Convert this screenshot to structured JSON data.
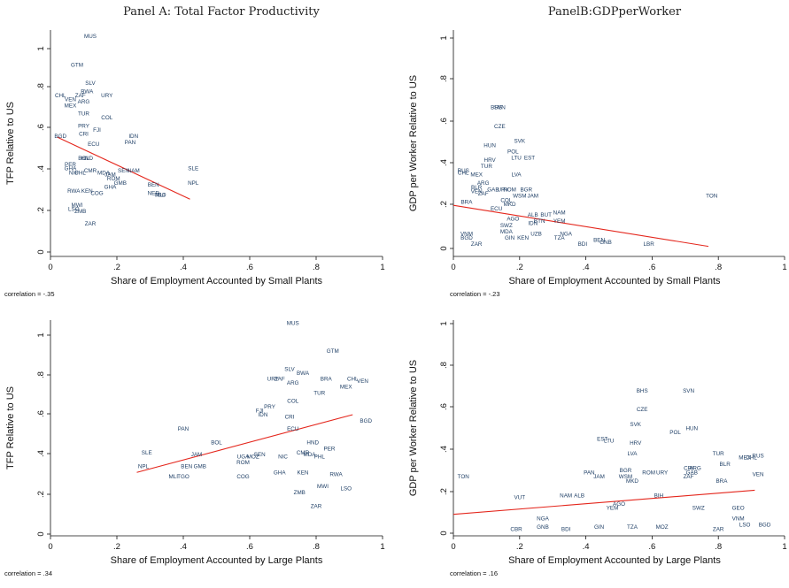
{
  "figure": {
    "titles": [
      "Panel A: Total Factor Productivity",
      "PanelB:GDPperWorker"
    ]
  },
  "colors": {
    "points": "#1f3f66",
    "fit": "#e4261c",
    "axis": "#111111"
  },
  "chart_data": [
    {
      "type": "scatter",
      "title": "Panel A: Total Factor Productivity",
      "xlabel": "Share of Employment Accounted by Small Plants",
      "ylabel": "TFP Relative to US",
      "xlim": [
        0,
        1
      ],
      "ylim": [
        0,
        1.05
      ],
      "xticks": [
        "0",
        ".2",
        ".4",
        ".6",
        ".8",
        "1"
      ],
      "yticks": [
        "0",
        ".2",
        ".4",
        ".6",
        ".8",
        "1"
      ],
      "note": "correlation = -.35",
      "fit_line": [
        [
          0.02,
          0.565
        ],
        [
          0.42,
          0.26
        ]
      ],
      "points": [
        {
          "label": "MUS",
          "x": 0.12,
          "y": 1.06
        },
        {
          "label": "GTM",
          "x": 0.08,
          "y": 0.92
        },
        {
          "label": "SLV",
          "x": 0.12,
          "y": 0.83
        },
        {
          "label": "BWA",
          "x": 0.11,
          "y": 0.79
        },
        {
          "label": "URY",
          "x": 0.17,
          "y": 0.77
        },
        {
          "label": "ZAF",
          "x": 0.09,
          "y": 0.77
        },
        {
          "label": "CHL",
          "x": 0.03,
          "y": 0.77
        },
        {
          "label": "VEN",
          "x": 0.06,
          "y": 0.75
        },
        {
          "label": "ARG",
          "x": 0.1,
          "y": 0.74
        },
        {
          "label": "MEX",
          "x": 0.06,
          "y": 0.72
        },
        {
          "label": "TUR",
          "x": 0.1,
          "y": 0.68
        },
        {
          "label": "COL",
          "x": 0.17,
          "y": 0.66
        },
        {
          "label": "PRY",
          "x": 0.1,
          "y": 0.62
        },
        {
          "label": "FJI",
          "x": 0.14,
          "y": 0.6
        },
        {
          "label": "CRI",
          "x": 0.1,
          "y": 0.58
        },
        {
          "label": "IDN",
          "x": 0.25,
          "y": 0.57
        },
        {
          "label": "BGD",
          "x": 0.03,
          "y": 0.57
        },
        {
          "label": "ECU",
          "x": 0.13,
          "y": 0.53
        },
        {
          "label": "PAN",
          "x": 0.24,
          "y": 0.54
        },
        {
          "label": "HND",
          "x": 0.11,
          "y": 0.46
        },
        {
          "label": "BOL",
          "x": 0.1,
          "y": 0.46
        },
        {
          "label": "SLE",
          "x": 0.43,
          "y": 0.41
        },
        {
          "label": "PER",
          "x": 0.06,
          "y": 0.43
        },
        {
          "label": "GHA",
          "x": 0.06,
          "y": 0.41
        },
        {
          "label": "CMR",
          "x": 0.12,
          "y": 0.4
        },
        {
          "label": "SEN",
          "x": 0.22,
          "y": 0.4
        },
        {
          "label": "NAM",
          "x": 0.25,
          "y": 0.4
        },
        {
          "label": "PHL",
          "x": 0.09,
          "y": 0.39
        },
        {
          "label": "NIC",
          "x": 0.07,
          "y": 0.39
        },
        {
          "label": "MDA",
          "x": 0.16,
          "y": 0.39
        },
        {
          "label": "JAM",
          "x": 0.18,
          "y": 0.38
        },
        {
          "label": "ROM",
          "x": 0.19,
          "y": 0.36
        },
        {
          "label": "GMB",
          "x": 0.21,
          "y": 0.34
        },
        {
          "label": "NPL",
          "x": 0.43,
          "y": 0.34
        },
        {
          "label": "BEN",
          "x": 0.31,
          "y": 0.33
        },
        {
          "label": "GHA",
          "x": 0.18,
          "y": 0.32
        },
        {
          "label": "RWA",
          "x": 0.07,
          "y": 0.3
        },
        {
          "label": "KEN",
          "x": 0.11,
          "y": 0.3
        },
        {
          "label": "COG",
          "x": 0.14,
          "y": 0.29
        },
        {
          "label": "NER",
          "x": 0.31,
          "y": 0.29
        },
        {
          "label": "TGO",
          "x": 0.33,
          "y": 0.28
        },
        {
          "label": "MLI",
          "x": 0.33,
          "y": 0.28
        },
        {
          "label": "MWI",
          "x": 0.08,
          "y": 0.23
        },
        {
          "label": "LSO",
          "x": 0.07,
          "y": 0.21
        },
        {
          "label": "ZMB",
          "x": 0.09,
          "y": 0.2
        },
        {
          "label": "ZAR",
          "x": 0.12,
          "y": 0.14
        }
      ]
    },
    {
      "type": "scatter",
      "title": "PanelB:GDPperWorker",
      "xlabel": "Share of Employment Accounted by Small Plants",
      "ylabel": "GDP per Worker Relative to US",
      "xlim": [
        0,
        1
      ],
      "ylim": [
        0,
        1
      ],
      "xticks": [
        "0",
        ".2",
        ".4",
        ".6",
        ".8",
        "1"
      ],
      "yticks": [
        "0",
        ".2",
        ".4",
        ".6",
        ".8",
        "1"
      ],
      "note": "correlation = -.23",
      "fit_line": [
        [
          0,
          0.205
        ],
        [
          0.77,
          0.01
        ]
      ],
      "points": [
        {
          "label": "SVN",
          "x": 0.14,
          "y": 0.67
        },
        {
          "label": "BHS",
          "x": 0.13,
          "y": 0.67
        },
        {
          "label": "CZE",
          "x": 0.14,
          "y": 0.58
        },
        {
          "label": "SVK",
          "x": 0.2,
          "y": 0.51
        },
        {
          "label": "HUN",
          "x": 0.11,
          "y": 0.49
        },
        {
          "label": "POL",
          "x": 0.18,
          "y": 0.46
        },
        {
          "label": "EST",
          "x": 0.23,
          "y": 0.43
        },
        {
          "label": "LTU",
          "x": 0.19,
          "y": 0.43
        },
        {
          "label": "HRV",
          "x": 0.11,
          "y": 0.42
        },
        {
          "label": "TUR",
          "x": 0.1,
          "y": 0.39
        },
        {
          "label": "LVA",
          "x": 0.19,
          "y": 0.35
        },
        {
          "label": "RUS",
          "x": 0.03,
          "y": 0.37
        },
        {
          "label": "CHL",
          "x": 0.03,
          "y": 0.36
        },
        {
          "label": "MEX",
          "x": 0.07,
          "y": 0.35
        },
        {
          "label": "ARG",
          "x": 0.09,
          "y": 0.31
        },
        {
          "label": "BLR",
          "x": 0.07,
          "y": 0.29
        },
        {
          "label": "VEN",
          "x": 0.07,
          "y": 0.27
        },
        {
          "label": "GAB",
          "x": 0.12,
          "y": 0.28
        },
        {
          "label": "URY",
          "x": 0.15,
          "y": 0.28
        },
        {
          "label": "ROM",
          "x": 0.17,
          "y": 0.28
        },
        {
          "label": "BGR",
          "x": 0.22,
          "y": 0.28
        },
        {
          "label": "ZAF",
          "x": 0.09,
          "y": 0.26
        },
        {
          "label": "WSM",
          "x": 0.2,
          "y": 0.25
        },
        {
          "label": "JAM",
          "x": 0.24,
          "y": 0.25
        },
        {
          "label": "TON",
          "x": 0.78,
          "y": 0.25
        },
        {
          "label": "BRA",
          "x": 0.04,
          "y": 0.22
        },
        {
          "label": "COL",
          "x": 0.16,
          "y": 0.23
        },
        {
          "label": "MKD",
          "x": 0.17,
          "y": 0.21
        },
        {
          "label": "ECU",
          "x": 0.13,
          "y": 0.19
        },
        {
          "label": "ALB",
          "x": 0.24,
          "y": 0.16
        },
        {
          "label": "BUT",
          "x": 0.28,
          "y": 0.16
        },
        {
          "label": "NAM",
          "x": 0.32,
          "y": 0.17
        },
        {
          "label": "AGO",
          "x": 0.18,
          "y": 0.14
        },
        {
          "label": "BTN",
          "x": 0.26,
          "y": 0.13
        },
        {
          "label": "YEM",
          "x": 0.32,
          "y": 0.13
        },
        {
          "label": "IDN",
          "x": 0.24,
          "y": 0.12
        },
        {
          "label": "SWZ",
          "x": 0.16,
          "y": 0.11
        },
        {
          "label": "MDA",
          "x": 0.16,
          "y": 0.08
        },
        {
          "label": "NGA",
          "x": 0.34,
          "y": 0.07
        },
        {
          "label": "UZB",
          "x": 0.25,
          "y": 0.07
        },
        {
          "label": "VNM",
          "x": 0.04,
          "y": 0.07
        },
        {
          "label": "BGD",
          "x": 0.04,
          "y": 0.05
        },
        {
          "label": "GIN",
          "x": 0.17,
          "y": 0.05
        },
        {
          "label": "KEN",
          "x": 0.21,
          "y": 0.05
        },
        {
          "label": "TZA",
          "x": 0.32,
          "y": 0.05
        },
        {
          "label": "BEN",
          "x": 0.44,
          "y": 0.04
        },
        {
          "label": "GNB",
          "x": 0.46,
          "y": 0.03
        },
        {
          "label": "LBR",
          "x": 0.59,
          "y": 0.02
        },
        {
          "label": "BDI",
          "x": 0.39,
          "y": 0.02
        },
        {
          "label": "ZAR",
          "x": 0.07,
          "y": 0.02
        }
      ]
    },
    {
      "type": "scatter",
      "title": "",
      "xlabel": "Share of Employment Accounted by Large Plants",
      "ylabel": "TFP Relative to US",
      "xlim": [
        0,
        1
      ],
      "ylim": [
        0,
        1.05
      ],
      "xticks": [
        "0",
        ".2",
        ".4",
        ".6",
        ".8",
        "1"
      ],
      "yticks": [
        "0",
        ".2",
        ".4",
        ".6",
        ".8",
        "1"
      ],
      "note": "correlation = .34",
      "fit_line": [
        [
          0.26,
          0.31
        ],
        [
          0.91,
          0.6
        ]
      ],
      "points": [
        {
          "label": "MUS",
          "x": 0.73,
          "y": 1.06
        },
        {
          "label": "GTM",
          "x": 0.85,
          "y": 0.92
        },
        {
          "label": "SLV",
          "x": 0.72,
          "y": 0.83
        },
        {
          "label": "BWA",
          "x": 0.76,
          "y": 0.81
        },
        {
          "label": "URY",
          "x": 0.67,
          "y": 0.78
        },
        {
          "label": "ZAF",
          "x": 0.69,
          "y": 0.78
        },
        {
          "label": "CHL",
          "x": 0.91,
          "y": 0.78
        },
        {
          "label": "VEN",
          "x": 0.94,
          "y": 0.77
        },
        {
          "label": "BRA",
          "x": 0.83,
          "y": 0.78
        },
        {
          "label": "ARG",
          "x": 0.73,
          "y": 0.76
        },
        {
          "label": "MEX",
          "x": 0.89,
          "y": 0.74
        },
        {
          "label": "TUR",
          "x": 0.81,
          "y": 0.71
        },
        {
          "label": "COL",
          "x": 0.73,
          "y": 0.67
        },
        {
          "label": "PRY",
          "x": 0.66,
          "y": 0.64
        },
        {
          "label": "FJI",
          "x": 0.63,
          "y": 0.62
        },
        {
          "label": "IDN",
          "x": 0.64,
          "y": 0.6
        },
        {
          "label": "CRI",
          "x": 0.72,
          "y": 0.59
        },
        {
          "label": "BGD",
          "x": 0.95,
          "y": 0.57
        },
        {
          "label": "ECU",
          "x": 0.73,
          "y": 0.53
        },
        {
          "label": "PAN",
          "x": 0.4,
          "y": 0.53
        },
        {
          "label": "HND",
          "x": 0.79,
          "y": 0.46
        },
        {
          "label": "BOL",
          "x": 0.5,
          "y": 0.46
        },
        {
          "label": "PER",
          "x": 0.84,
          "y": 0.43
        },
        {
          "label": "CMR",
          "x": 0.76,
          "y": 0.41
        },
        {
          "label": "SLE",
          "x": 0.29,
          "y": 0.41
        },
        {
          "label": "JAM",
          "x": 0.44,
          "y": 0.4
        },
        {
          "label": "NIC",
          "x": 0.7,
          "y": 0.39
        },
        {
          "label": "SEN",
          "x": 0.63,
          "y": 0.4
        },
        {
          "label": "PHL",
          "x": 0.81,
          "y": 0.39
        },
        {
          "label": "MDA",
          "x": 0.78,
          "y": 0.4
        },
        {
          "label": "UGA",
          "x": 0.58,
          "y": 0.39
        },
        {
          "label": "MOZ",
          "x": 0.61,
          "y": 0.39
        },
        {
          "label": "ROM",
          "x": 0.58,
          "y": 0.36
        },
        {
          "label": "NPL",
          "x": 0.28,
          "y": 0.34
        },
        {
          "label": "BEN",
          "x": 0.41,
          "y": 0.34
        },
        {
          "label": "GMB",
          "x": 0.45,
          "y": 0.34
        },
        {
          "label": "GHA",
          "x": 0.69,
          "y": 0.31
        },
        {
          "label": "KEN",
          "x": 0.76,
          "y": 0.31
        },
        {
          "label": "RWA",
          "x": 0.86,
          "y": 0.3
        },
        {
          "label": "MLI",
          "x": 0.37,
          "y": 0.29
        },
        {
          "label": "TGO",
          "x": 0.4,
          "y": 0.29
        },
        {
          "label": "COG",
          "x": 0.58,
          "y": 0.29
        },
        {
          "label": "MWI",
          "x": 0.82,
          "y": 0.24
        },
        {
          "label": "LSO",
          "x": 0.89,
          "y": 0.23
        },
        {
          "label": "ZMB",
          "x": 0.75,
          "y": 0.21
        },
        {
          "label": "ZAR",
          "x": 0.8,
          "y": 0.14
        }
      ]
    },
    {
      "type": "scatter",
      "title": "",
      "xlabel": "Share of Employment Accounted by Large Plants",
      "ylabel": "GDP per Worker Relative to US",
      "xlim": [
        0,
        1
      ],
      "ylim": [
        0,
        1
      ],
      "xticks": [
        "0",
        ".2",
        ".4",
        ".6",
        ".8",
        "1"
      ],
      "yticks": [
        "0",
        ".2",
        ".4",
        ".6",
        ".8",
        "1"
      ],
      "note": "correlation = .16",
      "fit_line": [
        [
          0,
          0.09
        ],
        [
          0.91,
          0.205
        ]
      ],
      "points": [
        {
          "label": "BHS",
          "x": 0.57,
          "y": 0.68
        },
        {
          "label": "SVN",
          "x": 0.71,
          "y": 0.68
        },
        {
          "label": "CZE",
          "x": 0.57,
          "y": 0.59
        },
        {
          "label": "SVK",
          "x": 0.55,
          "y": 0.52
        },
        {
          "label": "HUN",
          "x": 0.72,
          "y": 0.5
        },
        {
          "label": "POL",
          "x": 0.67,
          "y": 0.48
        },
        {
          "label": "EST",
          "x": 0.45,
          "y": 0.45
        },
        {
          "label": "LTU",
          "x": 0.47,
          "y": 0.44
        },
        {
          "label": "HRV",
          "x": 0.55,
          "y": 0.43
        },
        {
          "label": "TUR",
          "x": 0.8,
          "y": 0.38
        },
        {
          "label": "LVA",
          "x": 0.54,
          "y": 0.38
        },
        {
          "label": "MEX",
          "x": 0.88,
          "y": 0.36
        },
        {
          "label": "CHL",
          "x": 0.9,
          "y": 0.36
        },
        {
          "label": "RUS",
          "x": 0.92,
          "y": 0.37
        },
        {
          "label": "BLR",
          "x": 0.82,
          "y": 0.33
        },
        {
          "label": "ARG",
          "x": 0.73,
          "y": 0.31
        },
        {
          "label": "CRI",
          "x": 0.71,
          "y": 0.31
        },
        {
          "label": "URY",
          "x": 0.63,
          "y": 0.29
        },
        {
          "label": "ROM",
          "x": 0.59,
          "y": 0.29
        },
        {
          "label": "BGR",
          "x": 0.52,
          "y": 0.3
        },
        {
          "label": "GAB",
          "x": 0.72,
          "y": 0.29
        },
        {
          "label": "PAN",
          "x": 0.41,
          "y": 0.29
        },
        {
          "label": "JAM",
          "x": 0.44,
          "y": 0.27
        },
        {
          "label": "WSM",
          "x": 0.52,
          "y": 0.27
        },
        {
          "label": "VEN",
          "x": 0.92,
          "y": 0.28
        },
        {
          "label": "BRA",
          "x": 0.81,
          "y": 0.25
        },
        {
          "label": "ZAF",
          "x": 0.71,
          "y": 0.27
        },
        {
          "label": "MKD",
          "x": 0.54,
          "y": 0.25
        },
        {
          "label": "TON",
          "x": 0.03,
          "y": 0.27
        },
        {
          "label": "NAM",
          "x": 0.34,
          "y": 0.18
        },
        {
          "label": "ALB",
          "x": 0.38,
          "y": 0.18
        },
        {
          "label": "VUT",
          "x": 0.2,
          "y": 0.17
        },
        {
          "label": "BIH",
          "x": 0.62,
          "y": 0.18
        },
        {
          "label": "SWZ",
          "x": 0.74,
          "y": 0.12
        },
        {
          "label": "GEO",
          "x": 0.86,
          "y": 0.12
        },
        {
          "label": "AGO",
          "x": 0.5,
          "y": 0.14
        },
        {
          "label": "YEM",
          "x": 0.48,
          "y": 0.12
        },
        {
          "label": "VNM",
          "x": 0.86,
          "y": 0.07
        },
        {
          "label": "LSO",
          "x": 0.88,
          "y": 0.04
        },
        {
          "label": "BGD",
          "x": 0.94,
          "y": 0.04
        },
        {
          "label": "ZAR",
          "x": 0.8,
          "y": 0.02
        },
        {
          "label": "GIN",
          "x": 0.44,
          "y": 0.03
        },
        {
          "label": "NGA",
          "x": 0.27,
          "y": 0.07
        },
        {
          "label": "GNB",
          "x": 0.27,
          "y": 0.03
        },
        {
          "label": "CBR",
          "x": 0.19,
          "y": 0.02
        },
        {
          "label": "BDI",
          "x": 0.34,
          "y": 0.02
        },
        {
          "label": "TZA",
          "x": 0.54,
          "y": 0.03
        },
        {
          "label": "MOZ",
          "x": 0.63,
          "y": 0.03
        }
      ]
    }
  ]
}
